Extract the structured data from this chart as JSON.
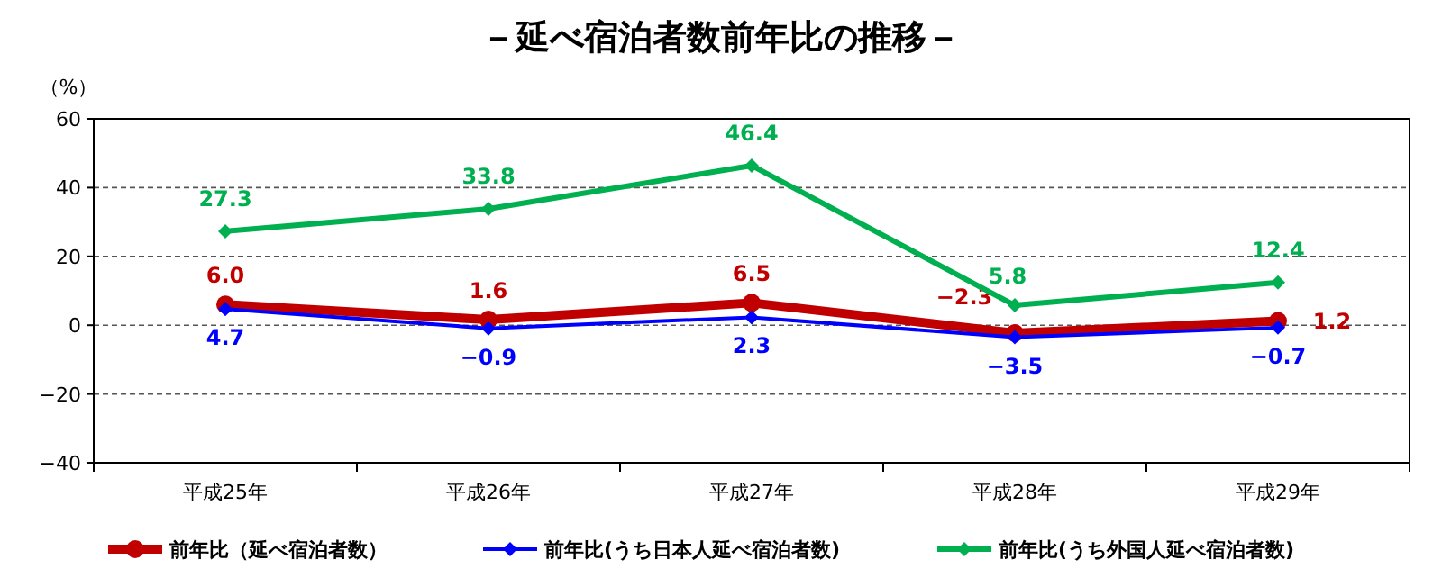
{
  "chart_data": {
    "type": "line",
    "title": "－延べ宿泊者数前年比の推移－",
    "ylabel": "（%）",
    "categories": [
      "平成25年",
      "平成26年",
      "平成27年",
      "平成28年",
      "平成29年"
    ],
    "ylim": [
      -40,
      60
    ],
    "yticks": [
      -40,
      -20,
      0,
      20,
      40,
      60
    ],
    "grid": "y",
    "legend": "bottom",
    "series": [
      {
        "name": "前年比（延べ宿泊者数）",
        "color": "#c00000",
        "marker": "circle",
        "values": [
          6.0,
          1.6,
          6.5,
          -2.3,
          1.2
        ],
        "value_labels": [
          "6.0",
          "1.6",
          "6.5",
          "−2.3",
          "1.2"
        ]
      },
      {
        "name": "前年比(うち日本人延べ宿泊者数)",
        "color": "#0000ff",
        "marker": "diamond",
        "values": [
          4.7,
          -0.9,
          2.3,
          -3.5,
          -0.7
        ],
        "value_labels": [
          "4.7",
          "−0.9",
          "2.3",
          "−3.5",
          "−0.7"
        ]
      },
      {
        "name": "前年比(うち外国人延べ宿泊者数)",
        "color": "#00b050",
        "marker": "diamond",
        "values": [
          27.3,
          33.8,
          46.4,
          5.8,
          12.4
        ],
        "value_labels": [
          "27.3",
          "33.8",
          "46.4",
          "5.8",
          "12.4"
        ]
      }
    ]
  }
}
